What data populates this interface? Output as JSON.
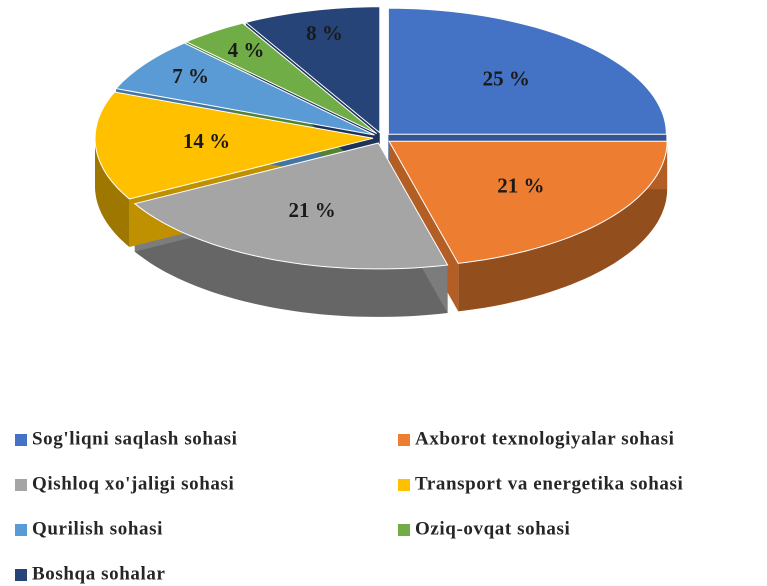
{
  "chart_data": {
    "type": "pie",
    "categories": [
      "Sog'liqni saqlash sohasi",
      "Axborot texnologiyalar sohasi",
      "Qishloq xo'jaligi sohasi",
      "Transport va energetika sohasi",
      "Qurilish sohasi",
      "Oziq-ovqat sohasi",
      "Boshqa sohalar"
    ],
    "values": [
      25,
      21,
      21,
      14,
      7,
      4,
      8
    ],
    "value_labels": [
      "25 %",
      "21 %",
      "21 %",
      "14 %",
      "7 %",
      "4 %",
      "8 %"
    ],
    "colors": [
      "#4472c4",
      "#ed7d31",
      "#a5a5a5",
      "#ffc000",
      "#5b9bd5",
      "#70ad47",
      "#264478"
    ],
    "legend": "bottom"
  }
}
